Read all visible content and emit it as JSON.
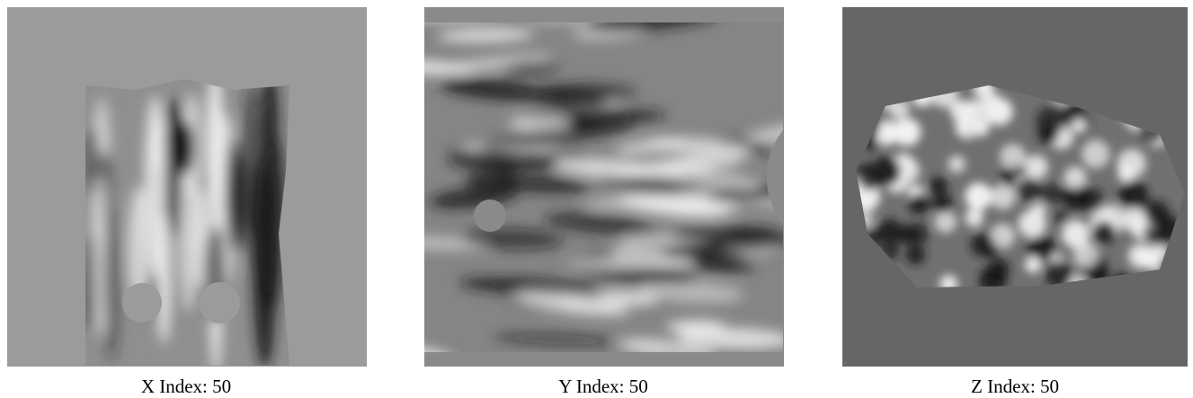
{
  "panels": [
    {
      "caption": "X Index: 50"
    },
    {
      "caption": "Y Index: 50"
    },
    {
      "caption": "Z Index: 50"
    }
  ]
}
